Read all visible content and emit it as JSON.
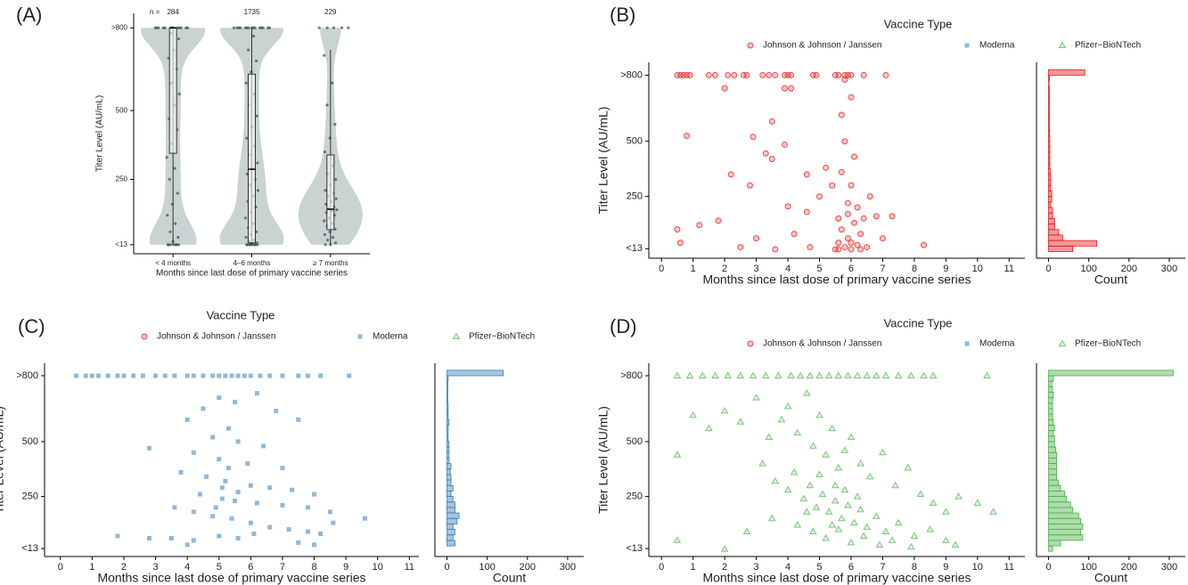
{
  "chart_data": [
    {
      "type": "violin",
      "panel": "(A)",
      "ylabel": "Titer Level (AU/mL)",
      "xlabel": "Months since last dose of primary vaccine series",
      "categories": [
        "< 4 months",
        "4–6 months",
        "≥ 7 months"
      ],
      "n_label": "n =",
      "n": [
        284,
        1735,
        229
      ],
      "ylim": [
        -10,
        830
      ],
      "yticks": [
        {
          "value": 800,
          "label": ">800"
        },
        500,
        250,
        {
          "value": 13,
          "label": "<13"
        }
      ],
      "violin_color": "#c9d3d1",
      "point_color": "#2f5350",
      "points": [
        [
          800,
          800,
          800,
          800,
          800,
          800,
          800,
          800,
          800,
          800,
          800,
          800,
          780,
          760,
          720,
          690,
          650,
          600,
          560,
          520,
          470,
          430,
          380,
          330,
          290,
          250,
          200,
          160,
          120,
          90,
          60,
          40,
          25,
          13,
          13,
          13,
          13,
          13,
          13,
          13
        ],
        [
          800,
          800,
          800,
          800,
          800,
          800,
          800,
          800,
          800,
          800,
          800,
          800,
          800,
          800,
          800,
          770,
          720,
          680,
          640,
          600,
          560,
          520,
          480,
          440,
          400,
          370,
          340,
          310,
          290,
          270,
          250,
          230,
          210,
          190,
          170,
          150,
          130,
          110,
          90,
          75,
          60,
          50,
          40,
          30,
          25,
          20,
          16,
          13,
          13,
          13,
          13,
          13,
          13,
          13,
          13
        ],
        [
          800,
          800,
          800,
          800,
          800,
          700,
          600,
          520,
          450,
          400,
          350,
          300,
          270,
          250,
          230,
          210,
          200,
          190,
          180,
          170,
          160,
          150,
          145,
          140,
          135,
          130,
          120,
          110,
          100,
          90,
          80,
          70,
          60,
          50,
          40,
          30,
          20,
          13,
          13
        ]
      ],
      "box": [
        {
          "min": 13,
          "q1": 345,
          "median": 800,
          "q3": 800,
          "max": 800
        },
        {
          "min": 13,
          "q1": 20,
          "median": 287,
          "q3": 632,
          "max": 800
        },
        {
          "min": 13,
          "q1": 68,
          "median": 142,
          "q3": 339,
          "max": 720
        }
      ]
    },
    {
      "type": "scatter",
      "panel": "(B)",
      "legend_title": "Vaccine Type",
      "ylabel": "Titer Level (AU/mL)",
      "xlabel": "Months since last dose of primary vaccine series",
      "xlim": [
        -0.4,
        11.5
      ],
      "xticks": [
        0,
        1,
        2,
        3,
        4,
        5,
        6,
        7,
        8,
        9,
        10,
        11
      ],
      "ylim": [
        -10,
        830
      ],
      "yticks": [
        {
          "value": 800,
          "label": ">800"
        },
        500,
        250,
        {
          "value": 13,
          "label": "<13"
        }
      ],
      "series": [
        {
          "name": "Johnson & Johnson / Janssen",
          "color": "#e41a1c",
          "marker": "circle",
          "x": [
            0.5,
            0.6,
            0.7,
            0.8,
            0.9,
            1.5,
            1.7,
            2.1,
            2.3,
            2.6,
            2.7,
            3.2,
            3.4,
            3.6,
            3.9,
            4.0,
            4.1,
            4.8,
            4.9,
            5.5,
            5.6,
            5.8,
            5.9,
            6.0,
            6.4,
            7.1,
            0.8,
            2.0,
            3.5,
            3.9,
            4.1,
            2.9,
            3.3,
            3.5,
            3.9,
            4.6,
            4.0,
            2.8,
            2.2,
            4.6,
            8.3,
            0.5,
            0.6,
            1.2,
            1.8,
            2.5,
            3.0,
            3.6,
            4.2,
            4.7,
            5.0,
            5.2,
            5.4,
            5.6,
            5.6,
            5.7,
            5.7,
            5.8,
            5.8,
            5.9,
            5.9,
            6.0,
            6.0,
            6.1,
            6.1,
            6.2,
            6.2,
            6.3,
            6.4,
            6.5,
            6.6,
            6.8,
            7.0,
            7.3,
            5.5,
            5.6,
            6.3,
            6.0,
            5.9,
            5.7,
            6.0,
            5.8
          ],
          "values": [
            800,
            800,
            800,
            800,
            800,
            800,
            800,
            800,
            800,
            800,
            800,
            800,
            800,
            800,
            800,
            800,
            800,
            800,
            800,
            800,
            800,
            800,
            800,
            800,
            800,
            800,
            525,
            740,
            590,
            740,
            740,
            520,
            445,
            420,
            485,
            350,
            205,
            300,
            350,
            180,
            30,
            100,
            40,
            120,
            140,
            20,
            60,
            10,
            80,
            20,
            250,
            380,
            300,
            150,
            40,
            620,
            100,
            20,
            500,
            220,
            60,
            300,
            10,
            430,
            130,
            200,
            30,
            80,
            150,
            20,
            250,
            160,
            60,
            160,
            10,
            10,
            10,
            40,
            170,
            360,
            700,
            780
          ]
        },
        {
          "name": "Moderna",
          "color": "#377eb8",
          "marker": "square",
          "x": [],
          "values": []
        },
        {
          "name": "Pfizer−BioNTech",
          "color": "#4daf4a",
          "marker": "triangle",
          "x": [],
          "values": []
        }
      ],
      "hist": {
        "xlabel": "Count",
        "xlim": [
          -30,
          340
        ],
        "xticks": [
          0,
          100,
          200,
          300
        ],
        "color": "#e41a1c",
        "bins": [
          0,
          25,
          50,
          75,
          100,
          125,
          150,
          175,
          200,
          225,
          250,
          275,
          300,
          325,
          350,
          375,
          400,
          425,
          450,
          475,
          500,
          525,
          550,
          575,
          600,
          625,
          650,
          675,
          700,
          725,
          750,
          775,
          800,
          825
        ],
        "counts": [
          60,
          120,
          35,
          25,
          15,
          15,
          10,
          10,
          5,
          8,
          8,
          5,
          5,
          5,
          4,
          3,
          3,
          3,
          3,
          3,
          3,
          2,
          2,
          2,
          2,
          2,
          2,
          2,
          2,
          2,
          1,
          2,
          90
        ]
      }
    },
    {
      "type": "scatter",
      "panel": "(C)",
      "legend_title": "Vaccine Type",
      "ylabel": "Titer Level (AU/mL)",
      "xlabel": "Months since last dose of primary vaccine series",
      "xlim": [
        -0.5,
        11.3
      ],
      "xticks": [
        0,
        1,
        2,
        3,
        4,
        5,
        6,
        7,
        8,
        9,
        10,
        11
      ],
      "ylim": [
        -10,
        830
      ],
      "yticks": [
        {
          "value": 800,
          "label": ">800"
        },
        500,
        250,
        {
          "value": 13,
          "label": "<13"
        }
      ],
      "series": [
        {
          "name": "Johnson & Johnson / Janssen",
          "color": "#e41a1c",
          "marker": "circle",
          "x": [],
          "values": []
        },
        {
          "name": "Moderna",
          "color": "#377eb8",
          "marker": "square",
          "x": [
            0.5,
            0.8,
            1.0,
            1.2,
            1.5,
            1.8,
            2.0,
            2.3,
            2.6,
            3.0,
            3.3,
            3.6,
            4.0,
            4.2,
            4.5,
            4.8,
            5.0,
            5.2,
            5.4,
            5.6,
            5.8,
            6.0,
            6.3,
            6.6,
            7.0,
            7.5,
            7.8,
            8.2,
            9.1,
            5.0,
            4.5,
            5.5,
            6.2,
            4.0,
            5.3,
            6.8,
            7.5,
            4.8,
            5.6,
            6.4,
            2.8,
            4.2,
            5.0,
            5.9,
            7.0,
            3.8,
            4.6,
            5.2,
            6.0,
            6.6,
            7.3,
            8.0,
            4.4,
            5.1,
            5.5,
            6.2,
            7.0,
            7.8,
            8.5,
            9.6,
            3.6,
            4.2,
            4.8,
            5.4,
            6.0,
            6.6,
            7.2,
            7.8,
            8.2,
            1.8,
            3.5,
            4.2,
            5.0,
            5.6,
            6.1,
            7.5,
            8.0,
            4.0,
            2.8,
            5.3,
            5.1,
            5.6,
            4.9,
            8.6
          ],
          "values": [
            800,
            800,
            800,
            800,
            800,
            800,
            800,
            800,
            800,
            800,
            800,
            800,
            800,
            800,
            800,
            800,
            800,
            800,
            800,
            800,
            800,
            800,
            800,
            800,
            800,
            800,
            800,
            800,
            800,
            700,
            650,
            680,
            720,
            600,
            560,
            640,
            600,
            520,
            500,
            480,
            470,
            450,
            420,
            400,
            380,
            360,
            340,
            320,
            300,
            290,
            280,
            260,
            260,
            240,
            230,
            220,
            210,
            200,
            180,
            150,
            200,
            180,
            160,
            150,
            130,
            110,
            100,
            90,
            80,
            70,
            60,
            50,
            70,
            60,
            80,
            40,
            30,
            30,
            60,
            380,
            290,
            270,
            200,
            130
          ]
        },
        {
          "name": "Pfizer−BioNTech",
          "color": "#4daf4a",
          "marker": "triangle",
          "x": [],
          "values": []
        }
      ],
      "hist": {
        "xlabel": "Count",
        "xlim": [
          -30,
          340
        ],
        "xticks": [
          0,
          100,
          200,
          300
        ],
        "color": "#377eb8",
        "bins": [
          0,
          25,
          50,
          75,
          100,
          125,
          150,
          175,
          200,
          225,
          250,
          275,
          300,
          325,
          350,
          375,
          400,
          425,
          450,
          475,
          500,
          525,
          550,
          575,
          600,
          625,
          650,
          675,
          700,
          725,
          750,
          775,
          800,
          825
        ],
        "counts": [
          0,
          20,
          15,
          20,
          15,
          25,
          30,
          20,
          20,
          15,
          10,
          15,
          10,
          10,
          8,
          10,
          5,
          5,
          5,
          5,
          3,
          3,
          3,
          5,
          3,
          3,
          3,
          2,
          2,
          2,
          2,
          3,
          140
        ]
      }
    },
    {
      "type": "scatter",
      "panel": "(D)",
      "legend_title": "Vaccine Type",
      "ylabel": "Titer Level (AU/mL)",
      "xlabel": "Months since last dose of primary vaccine series",
      "xlim": [
        -0.4,
        11.5
      ],
      "xticks": [
        0,
        1,
        2,
        3,
        4,
        5,
        6,
        7,
        8,
        9,
        10,
        11
      ],
      "ylim": [
        -10,
        830
      ],
      "yticks": [
        {
          "value": 800,
          "label": ">800"
        },
        500,
        250,
        {
          "value": 13,
          "label": "<13"
        }
      ],
      "series": [
        {
          "name": "Johnson & Johnson / Janssen",
          "color": "#e41a1c",
          "marker": "circle",
          "x": [],
          "values": []
        },
        {
          "name": "Moderna",
          "color": "#377eb8",
          "marker": "square",
          "x": [],
          "values": []
        },
        {
          "name": "Pfizer−BioNTech",
          "color": "#4daf4a",
          "marker": "triangle",
          "x": [
            0.5,
            0.9,
            1.3,
            1.7,
            2.1,
            2.5,
            2.9,
            3.3,
            3.7,
            4.1,
            4.4,
            4.7,
            5.0,
            5.3,
            5.6,
            5.9,
            6.2,
            6.5,
            6.8,
            7.1,
            7.5,
            7.9,
            8.3,
            8.6,
            10.3,
            0.5,
            1.0,
            1.5,
            2.0,
            2.5,
            3.0,
            3.4,
            3.8,
            4.0,
            4.3,
            4.6,
            4.8,
            5.0,
            5.2,
            5.4,
            5.6,
            5.8,
            6.0,
            6.3,
            6.6,
            7.0,
            7.4,
            7.8,
            8.2,
            8.6,
            9.0,
            9.4,
            10.0,
            10.5,
            3.2,
            3.6,
            4.0,
            4.2,
            4.5,
            4.7,
            4.9,
            5.1,
            5.3,
            5.5,
            5.7,
            5.9,
            6.1,
            6.3,
            6.5,
            6.8,
            7.1,
            7.5,
            8.0,
            8.5,
            9.0,
            9.3,
            4.3,
            4.8,
            5.2,
            5.6,
            6.0,
            6.4,
            6.9,
            7.3,
            7.9,
            0.5,
            2.0,
            2.7,
            3.5,
            5.0,
            5.5,
            5.8,
            6.2,
            4.6,
            5.4
          ],
          "values": [
            800,
            800,
            800,
            800,
            800,
            800,
            800,
            800,
            800,
            800,
            800,
            800,
            800,
            800,
            800,
            800,
            800,
            800,
            800,
            800,
            800,
            800,
            800,
            800,
            800,
            440,
            620,
            560,
            640,
            590,
            700,
            520,
            600,
            660,
            540,
            720,
            480,
            620,
            440,
            560,
            380,
            460,
            520,
            400,
            340,
            450,
            300,
            380,
            260,
            220,
            180,
            250,
            220,
            180,
            400,
            320,
            280,
            360,
            240,
            300,
            200,
            260,
            180,
            230,
            150,
            210,
            130,
            190,
            110,
            160,
            90,
            130,
            70,
            100,
            50,
            30,
            120,
            90,
            60,
            100,
            40,
            70,
            30,
            50,
            20,
            50,
            10,
            90,
            150,
            350,
            300,
            280,
            250,
            180,
            120
          ]
        }
      ],
      "hist": {
        "xlabel": "Count",
        "xlim": [
          -30,
          340
        ],
        "xticks": [
          0,
          100,
          200,
          300
        ],
        "color": "#4daf4a",
        "bins": [
          0,
          25,
          50,
          75,
          100,
          125,
          150,
          175,
          200,
          225,
          250,
          275,
          300,
          325,
          350,
          375,
          400,
          425,
          450,
          475,
          500,
          525,
          550,
          575,
          600,
          625,
          650,
          675,
          700,
          725,
          750,
          775,
          800,
          825
        ],
        "counts": [
          10,
          30,
          85,
          80,
          85,
          80,
          75,
          60,
          55,
          45,
          40,
          30,
          25,
          20,
          20,
          20,
          20,
          20,
          18,
          15,
          15,
          12,
          15,
          12,
          10,
          10,
          10,
          10,
          12,
          10,
          8,
          12,
          310
        ]
      }
    }
  ]
}
